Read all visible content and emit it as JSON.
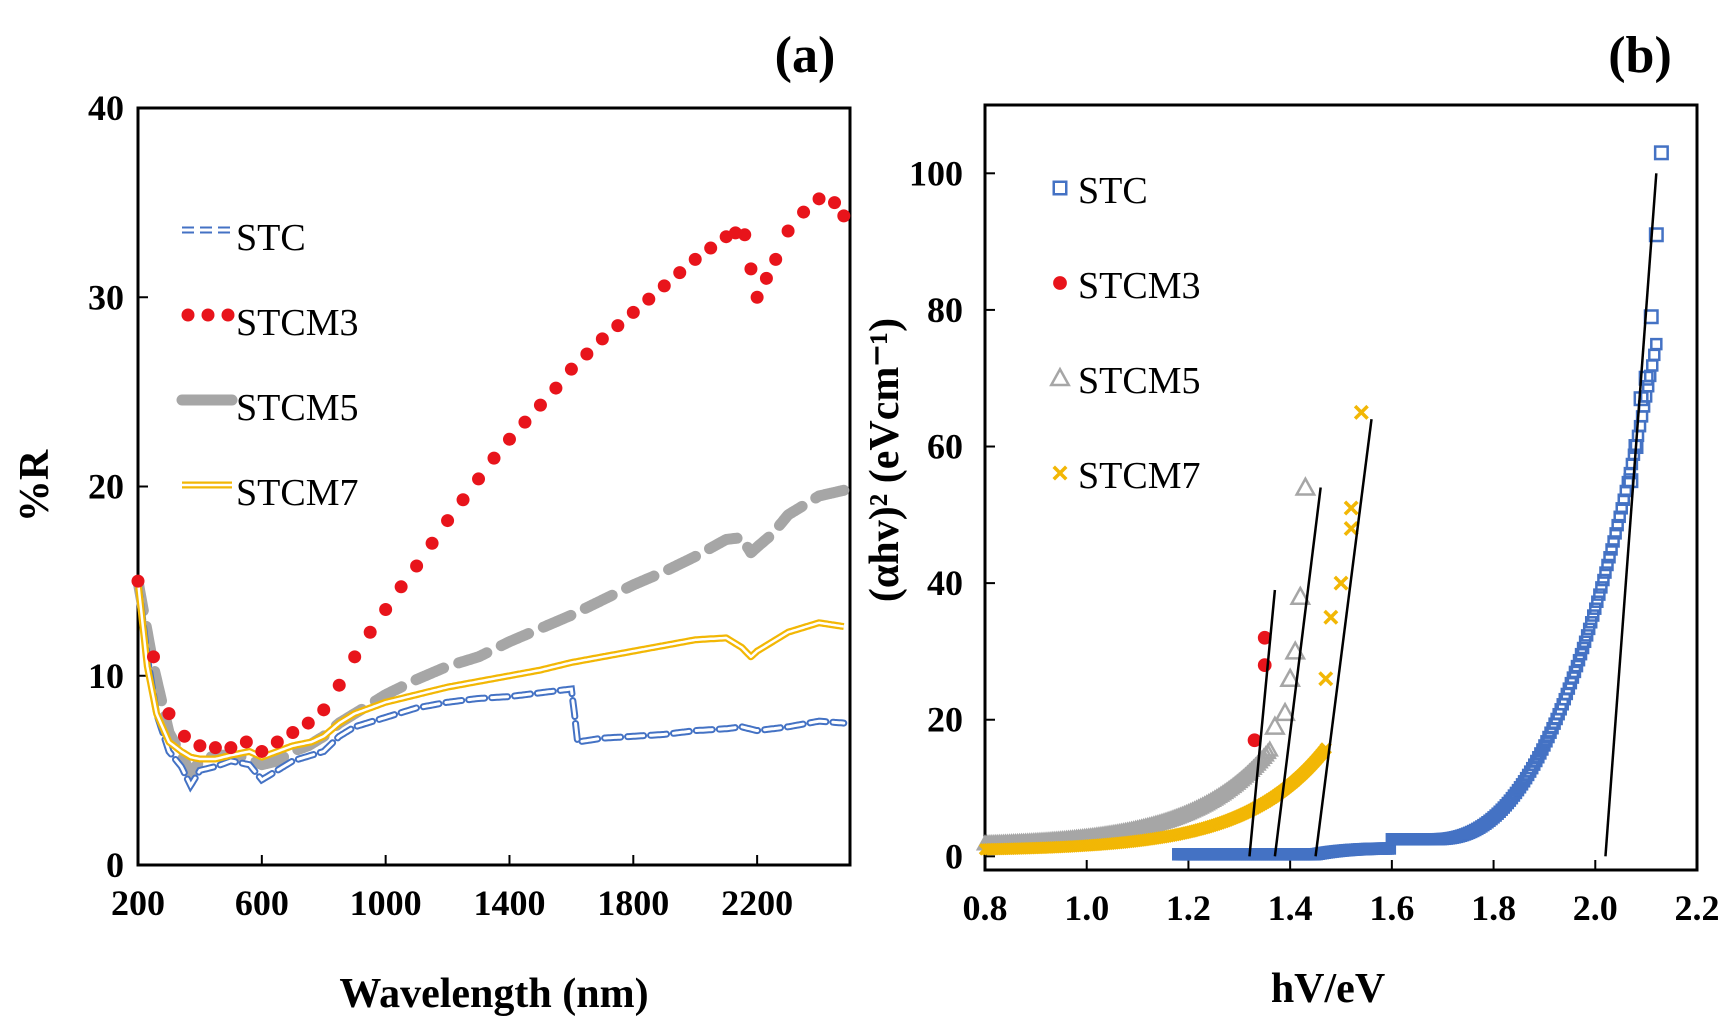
{
  "chart_data": [
    {
      "panel": "(a)",
      "type": "line",
      "xlabel": "Wavelength (nm)",
      "ylabel": "%R",
      "xlim": [
        200,
        2500
      ],
      "ylim": [
        0,
        40
      ],
      "xticks": [
        200,
        600,
        1000,
        1400,
        1800,
        2200
      ],
      "yticks": [
        0,
        10,
        20,
        30,
        40
      ],
      "legend_position": "top-left",
      "series": [
        {
          "name": "STC",
          "color": "#4472C4",
          "style": "hollow-dashes",
          "x": [
            200,
            230,
            260,
            300,
            340,
            370,
            400,
            450,
            500,
            560,
            600,
            650,
            700,
            760,
            800,
            850,
            900,
            1000,
            1100,
            1200,
            1300,
            1400,
            1500,
            1600,
            1610,
            1620,
            1700,
            1800,
            1900,
            2000,
            2100,
            2150,
            2200,
            2250,
            2300,
            2400,
            2480
          ],
          "y": [
            15,
            11,
            8,
            6,
            5.2,
            4.2,
            5,
            5.2,
            5.5,
            5.3,
            4.5,
            5,
            5.5,
            5.8,
            6,
            6.8,
            7.3,
            7.8,
            8.3,
            8.6,
            8.8,
            8.9,
            9.1,
            9.3,
            8,
            6.5,
            6.7,
            6.8,
            6.9,
            7.1,
            7.2,
            7.3,
            7.1,
            7.2,
            7.3,
            7.6,
            7.5
          ]
        },
        {
          "name": "STCM3",
          "color": "#E8141B",
          "style": "dots",
          "x": [
            200,
            250,
            300,
            350,
            400,
            450,
            500,
            550,
            600,
            650,
            700,
            750,
            800,
            850,
            900,
            950,
            1000,
            1050,
            1100,
            1150,
            1200,
            1250,
            1300,
            1350,
            1400,
            1450,
            1500,
            1550,
            1600,
            1650,
            1700,
            1750,
            1800,
            1850,
            1900,
            1950,
            2000,
            2050,
            2100,
            2130,
            2160,
            2180,
            2200,
            2230,
            2260,
            2300,
            2350,
            2400,
            2450,
            2480
          ],
          "y": [
            15,
            11,
            8,
            6.8,
            6.3,
            6.2,
            6.2,
            6.5,
            6,
            6.5,
            7,
            7.5,
            8.2,
            9.5,
            11,
            12.3,
            13.5,
            14.7,
            15.8,
            17,
            18.2,
            19.3,
            20.4,
            21.5,
            22.5,
            23.4,
            24.3,
            25.2,
            26.2,
            27,
            27.8,
            28.5,
            29.2,
            29.9,
            30.6,
            31.3,
            32,
            32.6,
            33.2,
            33.4,
            33.3,
            31.5,
            30,
            31,
            32,
            33.5,
            34.5,
            35.2,
            35,
            34.3
          ]
        },
        {
          "name": "STCM5",
          "color": "#A6A6A6",
          "style": "thick-dashes",
          "x": [
            200,
            250,
            300,
            350,
            370,
            400,
            450,
            500,
            550,
            600,
            650,
            700,
            750,
            800,
            850,
            900,
            1000,
            1100,
            1200,
            1300,
            1400,
            1500,
            1600,
            1700,
            1800,
            1900,
            2000,
            2100,
            2150,
            2180,
            2200,
            2250,
            2300,
            2400,
            2480
          ],
          "y": [
            15,
            10.5,
            7,
            5.5,
            4.8,
            5.5,
            5.8,
            5.8,
            5.7,
            5.3,
            5.5,
            6,
            6.3,
            6.8,
            7.5,
            8,
            9,
            9.8,
            10.5,
            11,
            11.8,
            12.5,
            13.2,
            14,
            14.8,
            15.5,
            16.3,
            17.2,
            17.3,
            16.5,
            16.8,
            17.5,
            18.5,
            19.5,
            19.8
          ]
        },
        {
          "name": "STCM7",
          "color": "#F2B705",
          "style": "double-line",
          "x": [
            200,
            230,
            260,
            300,
            340,
            370,
            400,
            450,
            500,
            560,
            600,
            650,
            700,
            760,
            800,
            850,
            900,
            1000,
            1100,
            1200,
            1300,
            1400,
            1500,
            1600,
            1700,
            1800,
            1900,
            2000,
            2100,
            2150,
            2180,
            2200,
            2250,
            2300,
            2400,
            2480
          ],
          "y": [
            15,
            10.5,
            8,
            6.5,
            6,
            5.7,
            5.6,
            5.6,
            5.8,
            6,
            5.7,
            6,
            6.3,
            6.5,
            6.8,
            7.5,
            8,
            8.6,
            9,
            9.4,
            9.7,
            10,
            10.3,
            10.7,
            11,
            11.3,
            11.6,
            11.9,
            12,
            11.5,
            11,
            11.3,
            11.8,
            12.3,
            12.8,
            12.6
          ]
        }
      ]
    },
    {
      "panel": "(b)",
      "type": "scatter",
      "xlabel": "hV/eV",
      "ylabel": "(αhv)² (eVcm⁻¹)",
      "xlim": [
        0.8,
        2.2
      ],
      "ylim": [
        -2,
        110
      ],
      "xticks": [
        "0.8",
        "1.0",
        "1.2",
        "1.4",
        "1.6",
        "1.8",
        "2.0",
        "2.2"
      ],
      "yticks": [
        0,
        20,
        40,
        60,
        80,
        100
      ],
      "legend_position": "top-left",
      "series": [
        {
          "name": "STC",
          "color": "#4472C4",
          "marker": "square",
          "curve": {
            "a": 0.3,
            "b": 1.55,
            "x0": 1.18,
            "x1": 2.12
          },
          "extra_points": [
            [
              2.07,
              55
            ],
            [
              2.08,
              60
            ],
            [
              2.09,
              67
            ],
            [
              2.1,
              70
            ],
            [
              2.11,
              79
            ],
            [
              2.12,
              91
            ],
            [
              2.13,
              103
            ]
          ]
        },
        {
          "name": "STCM3",
          "color": "#E8141B",
          "marker": "dot",
          "points": [
            [
              1.33,
              17
            ],
            [
              1.35,
              28
            ],
            [
              1.35,
              32
            ]
          ]
        },
        {
          "name": "STCM5",
          "color": "#A6A6A6",
          "marker": "triangle",
          "curve": {
            "a": 1.2,
            "b": 0.85,
            "x0": 0.8,
            "x1": 1.36
          },
          "extra_points": [
            [
              1.37,
              19
            ],
            [
              1.39,
              21
            ],
            [
              1.4,
              26
            ],
            [
              1.41,
              30
            ],
            [
              1.42,
              38
            ],
            [
              1.43,
              54
            ]
          ]
        },
        {
          "name": "STCM7",
          "color": "#F2B705",
          "marker": "x",
          "curve": {
            "a": 0.45,
            "b": 1.05,
            "x0": 0.8,
            "x1": 1.47
          },
          "extra_points": [
            [
              1.47,
              26
            ],
            [
              1.48,
              35
            ],
            [
              1.5,
              40
            ],
            [
              1.52,
              48
            ],
            [
              1.52,
              51
            ],
            [
              1.54,
              65
            ]
          ]
        }
      ],
      "fit_lines": [
        {
          "name": "STCM3 tangent",
          "x": [
            1.32,
            1.37
          ],
          "y": [
            0,
            39
          ]
        },
        {
          "name": "STCM5 tangent",
          "x": [
            1.37,
            1.46
          ],
          "y": [
            0,
            54
          ]
        },
        {
          "name": "STCM7 tangent",
          "x": [
            1.45,
            1.56
          ],
          "y": [
            0,
            64
          ]
        },
        {
          "name": "STC tangent",
          "x": [
            2.02,
            2.12
          ],
          "y": [
            0,
            100
          ]
        }
      ]
    }
  ]
}
